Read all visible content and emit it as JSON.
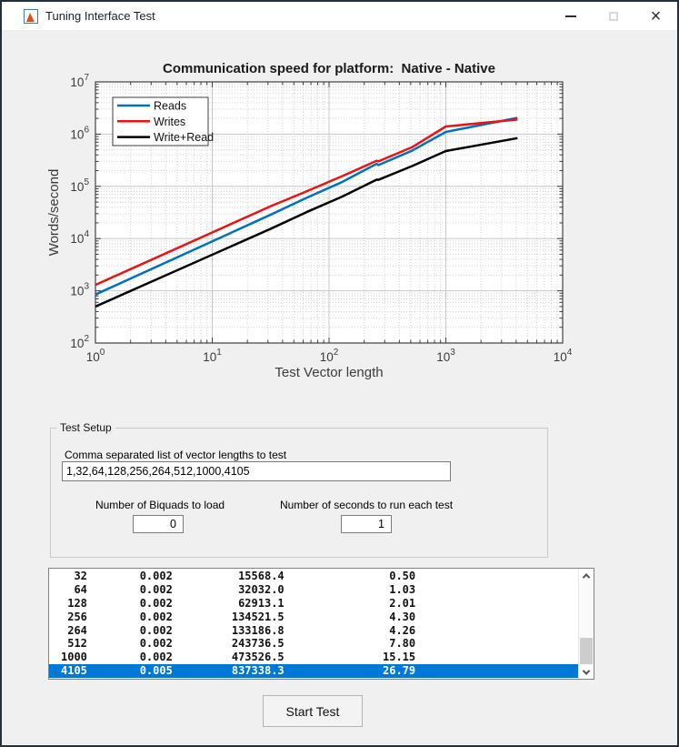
{
  "window": {
    "title": "Tuning Interface Test",
    "border_color": "#22303e"
  },
  "chart_data": {
    "type": "line",
    "title": "Communication speed for platform:  Native - Native",
    "xlabel": "Test Vector length",
    "ylabel": "Words/second",
    "xscale": "log",
    "yscale": "log",
    "xlim": [
      1,
      10000
    ],
    "ylim": [
      100,
      10000000
    ],
    "grid": true,
    "minor_grid": true,
    "legend_position": "top-left",
    "x": [
      1,
      32,
      64,
      128,
      256,
      264,
      512,
      1000,
      4105
    ],
    "series": [
      {
        "name": "Reads",
        "color": "#0072bd",
        "values": [
          850,
          29000,
          60000,
          120000,
          270000,
          255000,
          480000,
          1100000,
          2050000
        ]
      },
      {
        "name": "Writes",
        "color": "#ee1111",
        "values": [
          1300,
          42000,
          80000,
          155000,
          310000,
          300000,
          560000,
          1400000,
          1900000
        ]
      },
      {
        "name": "Write+Read",
        "color": "#000000",
        "values": [
          500,
          15568.4,
          32032.0,
          62913.1,
          134521.5,
          133186.8,
          243736.5,
          473526.5,
          837338.3
        ]
      }
    ]
  },
  "test_setup": {
    "group_label": "Test Setup",
    "vector_list_label": "Comma separated list of vector lengths to test",
    "vector_list_value": "1,32,64,128,256,264,512,1000,4105",
    "biquads_label": "Number of Biquads to load",
    "biquads_value": "0",
    "seconds_label": "Number of seconds to run each test",
    "seconds_value": "1"
  },
  "results": {
    "selection_color": "#0078d7",
    "selected_index": 7,
    "rows": [
      [
        "32",
        "0.002",
        "15568.4",
        "0.50"
      ],
      [
        "64",
        "0.002",
        "32032.0",
        "1.03"
      ],
      [
        "128",
        "0.002",
        "62913.1",
        "2.01"
      ],
      [
        "256",
        "0.002",
        "134521.5",
        "4.30"
      ],
      [
        "264",
        "0.002",
        "133186.8",
        "4.26"
      ],
      [
        "512",
        "0.002",
        "243736.5",
        "7.80"
      ],
      [
        "1000",
        "0.002",
        "473526.5",
        "15.15"
      ],
      [
        "4105",
        "0.005",
        "837338.3",
        "26.79"
      ]
    ]
  },
  "start_button_label": "Start Test"
}
